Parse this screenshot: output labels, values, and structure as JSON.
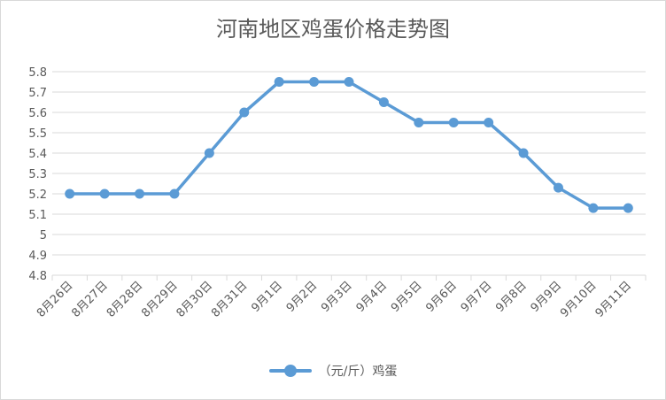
{
  "colors": {
    "series": "#5b9bd5",
    "grid": "#d9d9d9",
    "text": "#595959"
  },
  "chart_data": {
    "type": "line",
    "title": "河南地区鸡蛋价格走势图",
    "xlabel": "",
    "ylabel": "",
    "categories": [
      "8月26日",
      "8月27日",
      "8月28日",
      "8月29日",
      "8月30日",
      "8月31日",
      "9月1日",
      "9月2日",
      "9月3日",
      "9月4日",
      "9月5日",
      "9月6日",
      "9月7日",
      "9月8日",
      "9月9日",
      "9月10日",
      "9月11日"
    ],
    "ylim": [
      4.8,
      5.8
    ],
    "yticks": [
      "4.8",
      "4.9",
      "5",
      "5.1",
      "5.2",
      "5.3",
      "5.4",
      "5.5",
      "5.6",
      "5.7",
      "5.8"
    ],
    "grid": true,
    "legend_position": "bottom",
    "series": [
      {
        "name": "（元/斤）鸡蛋",
        "values": [
          5.2,
          5.2,
          5.2,
          5.2,
          5.4,
          5.6,
          5.75,
          5.75,
          5.75,
          5.65,
          5.55,
          5.55,
          5.55,
          5.4,
          5.23,
          5.13,
          5.13
        ]
      }
    ]
  }
}
